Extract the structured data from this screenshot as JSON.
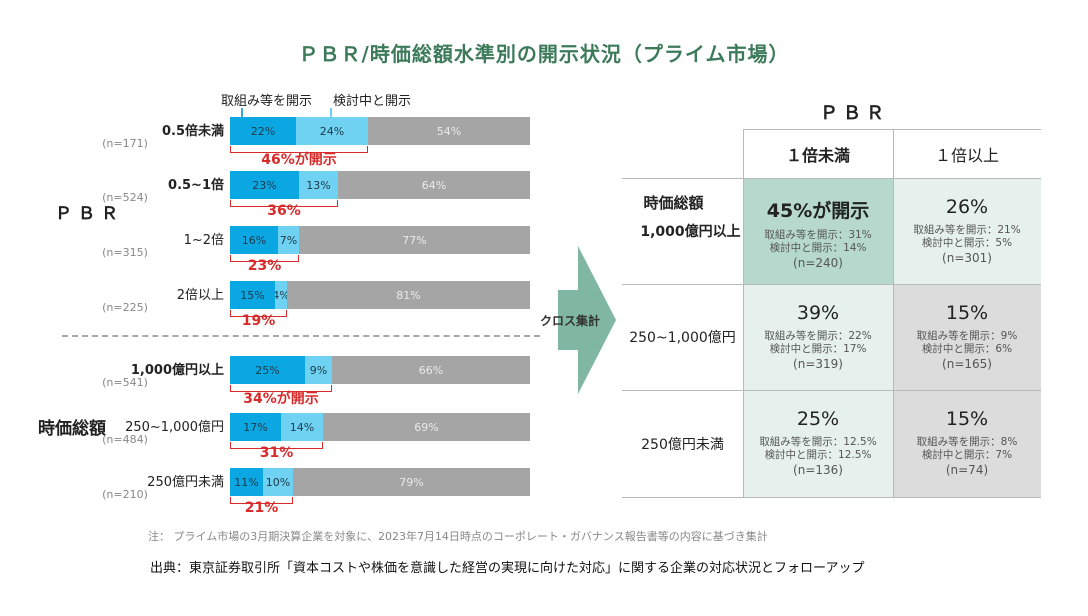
{
  "title": "ＰＢＲ/時価総額水準別の開示状況（プライム市場）",
  "legend": {
    "disclosed": "取組み等を開示",
    "considering": "検討中と開示"
  },
  "colors": {
    "disclosed": "#0aa7e2",
    "considering": "#6fd2f2",
    "other": "#a5a5a5",
    "highlight": "#d92b2b",
    "title": "#3d7a5a"
  },
  "group_pbr_label": "ＰＢＲ",
  "group_cap_label": "時価総額",
  "cross_label": "クロス集計",
  "chart_data": {
    "type": "bar",
    "stacked": true,
    "orientation": "horizontal",
    "xlim": [
      0,
      100
    ],
    "series_names": [
      "取組み等を開示",
      "検討中と開示",
      ""
    ],
    "groups": [
      {
        "name": "ＰＢＲ",
        "rows": [
          {
            "label": "0.5倍未満",
            "n": "(n=171)",
            "values": [
              22,
              24,
              54
            ],
            "labels": [
              "22%",
              "24%",
              "54%"
            ],
            "total": "46%が開示",
            "bold": true
          },
          {
            "label": "0.5~1倍",
            "n": "(n=524)",
            "values": [
              23,
              13,
              64
            ],
            "labels": [
              "23%",
              "13%",
              "64%"
            ],
            "total": "36%",
            "bold": true
          },
          {
            "label": "1~2倍",
            "n": "(n=315)",
            "values": [
              16,
              7,
              77
            ],
            "labels": [
              "16%",
              "7%",
              "77%"
            ],
            "total": "23%",
            "bold": false
          },
          {
            "label": "2倍以上",
            "n": "(n=225)",
            "values": [
              15,
              4,
              81
            ],
            "labels": [
              "15%",
              "4%",
              "81%"
            ],
            "total": "19%",
            "bold": false
          }
        ]
      },
      {
        "name": "時価総額",
        "rows": [
          {
            "label": "1,000億円以上",
            "n": "(n=541)",
            "values": [
              25,
              9,
              66
            ],
            "labels": [
              "25%",
              "9%",
              "66%"
            ],
            "total": "34%が開示",
            "bold": true
          },
          {
            "label": "250~1,000億円",
            "n": "(n=484)",
            "values": [
              17,
              14,
              69
            ],
            "labels": [
              "17%",
              "14%",
              "69%"
            ],
            "total": "31%",
            "bold": false
          },
          {
            "label": "250億円未満",
            "n": "(n=210)",
            "values": [
              11,
              10,
              79
            ],
            "labels": [
              "11%",
              "10%",
              "79%"
            ],
            "total": "21%",
            "bold": false
          }
        ]
      }
    ]
  },
  "matrix": {
    "title": "ＰＢＲ",
    "col_headers": [
      "１倍未満",
      "１倍以上"
    ],
    "row_header_top": "時価総額",
    "rows": [
      {
        "label": "1,000億円以上",
        "cells": [
          {
            "big": "45%が開示",
            "line1": "取組み等を開示：31%",
            "line2": "検討中と開示：14%",
            "n": "(n=240)"
          },
          {
            "big": "26%",
            "line1": "取組み等を開示：21%",
            "line2": "検討中と開示：5%",
            "n": "(n=301)"
          }
        ]
      },
      {
        "label": "250~1,000億円",
        "cells": [
          {
            "big": "39%",
            "line1": "取組み等を開示：22%",
            "line2": "検討中と開示：17%",
            "n": "(n=319)"
          },
          {
            "big": "15%",
            "line1": "取組み等を開示：9%",
            "line2": "検討中と開示：6%",
            "n": "(n=165)"
          }
        ]
      },
      {
        "label": "250億円未満",
        "cells": [
          {
            "big": "25%",
            "line1": "取組み等を開示：12.5%",
            "line2": "検討中と開示：12.5%",
            "n": "(n=136)"
          },
          {
            "big": "15%",
            "line1": "取組み等を開示：8%",
            "line2": "検討中と開示：7%",
            "n": "(n=74)"
          }
        ]
      }
    ]
  },
  "note": "注： プライム市場の3月期決算企業を対象に、2023年7月14日時点のコーポレート・ガバナンス報告書等の内容に基づき集計",
  "source": "出典：東京証券取引所「資本コストや株価を意識した経営の実現に向けた対応」に関する企業の対応状況とフォローアップ"
}
